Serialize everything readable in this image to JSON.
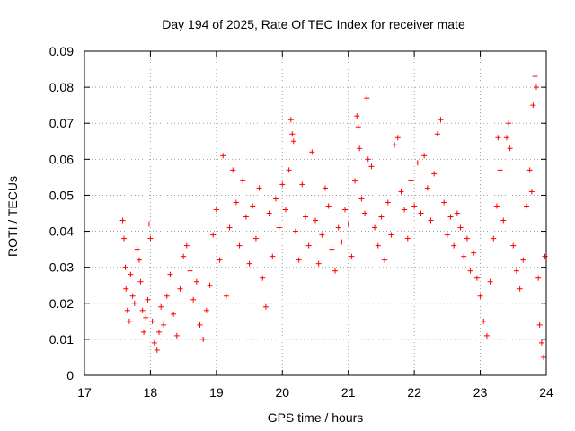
{
  "chart_data": {
    "type": "scatter",
    "title": "Day 194 of 2025, Rate Of TEC Index for receiver mate",
    "xlabel": "GPS time / hours",
    "ylabel": "ROTI / TECUs",
    "xlim": [
      17,
      24
    ],
    "ylim": [
      0,
      0.09
    ],
    "xticks": [
      "17",
      "18",
      "19",
      "20",
      "21",
      "22",
      "23",
      "24"
    ],
    "yticks": [
      "0",
      "0.01",
      "0.02",
      "0.03",
      "0.04",
      "0.05",
      "0.06",
      "0.07",
      "0.08",
      "0.09"
    ],
    "grid": true,
    "marker": "+",
    "color": "#ff0000",
    "series": [
      {
        "name": "ROTI",
        "points": [
          [
            17.58,
            0.043
          ],
          [
            17.6,
            0.038
          ],
          [
            17.62,
            0.03
          ],
          [
            17.63,
            0.024
          ],
          [
            17.65,
            0.018
          ],
          [
            17.68,
            0.015
          ],
          [
            17.7,
            0.028
          ],
          [
            17.73,
            0.022
          ],
          [
            17.76,
            0.02
          ],
          [
            17.8,
            0.035
          ],
          [
            17.83,
            0.032
          ],
          [
            17.85,
            0.026
          ],
          [
            17.88,
            0.018
          ],
          [
            17.9,
            0.012
          ],
          [
            17.93,
            0.016
          ],
          [
            17.96,
            0.021
          ],
          [
            17.98,
            0.042
          ],
          [
            18.0,
            0.038
          ],
          [
            18.03,
            0.015
          ],
          [
            18.06,
            0.009
          ],
          [
            18.1,
            0.007
          ],
          [
            18.13,
            0.012
          ],
          [
            18.16,
            0.019
          ],
          [
            18.2,
            0.014
          ],
          [
            18.25,
            0.022
          ],
          [
            18.3,
            0.028
          ],
          [
            18.35,
            0.017
          ],
          [
            18.4,
            0.011
          ],
          [
            18.45,
            0.024
          ],
          [
            18.5,
            0.033
          ],
          [
            18.55,
            0.036
          ],
          [
            18.6,
            0.029
          ],
          [
            18.65,
            0.021
          ],
          [
            18.7,
            0.026
          ],
          [
            18.75,
            0.014
          ],
          [
            18.8,
            0.01
          ],
          [
            18.85,
            0.018
          ],
          [
            18.9,
            0.025
          ],
          [
            18.95,
            0.039
          ],
          [
            19.0,
            0.046
          ],
          [
            19.05,
            0.032
          ],
          [
            19.1,
            0.061
          ],
          [
            19.15,
            0.022
          ],
          [
            19.2,
            0.041
          ],
          [
            19.25,
            0.057
          ],
          [
            19.3,
            0.048
          ],
          [
            19.35,
            0.036
          ],
          [
            19.4,
            0.054
          ],
          [
            19.45,
            0.044
          ],
          [
            19.5,
            0.031
          ],
          [
            19.55,
            0.047
          ],
          [
            19.6,
            0.038
          ],
          [
            19.65,
            0.052
          ],
          [
            19.7,
            0.027
          ],
          [
            19.75,
            0.019
          ],
          [
            19.8,
            0.045
          ],
          [
            19.85,
            0.033
          ],
          [
            19.9,
            0.049
          ],
          [
            19.95,
            0.041
          ],
          [
            20.0,
            0.053
          ],
          [
            20.05,
            0.046
          ],
          [
            20.1,
            0.057
          ],
          [
            20.13,
            0.071
          ],
          [
            20.15,
            0.067
          ],
          [
            20.17,
            0.065
          ],
          [
            20.2,
            0.04
          ],
          [
            20.25,
            0.032
          ],
          [
            20.3,
            0.053
          ],
          [
            20.35,
            0.044
          ],
          [
            20.4,
            0.036
          ],
          [
            20.45,
            0.062
          ],
          [
            20.5,
            0.043
          ],
          [
            20.55,
            0.031
          ],
          [
            20.6,
            0.039
          ],
          [
            20.65,
            0.052
          ],
          [
            20.7,
            0.047
          ],
          [
            20.75,
            0.035
          ],
          [
            20.8,
            0.029
          ],
          [
            20.85,
            0.041
          ],
          [
            20.9,
            0.037
          ],
          [
            20.95,
            0.046
          ],
          [
            21.0,
            0.042
          ],
          [
            21.05,
            0.033
          ],
          [
            21.1,
            0.054
          ],
          [
            21.13,
            0.072
          ],
          [
            21.15,
            0.069
          ],
          [
            21.17,
            0.063
          ],
          [
            21.2,
            0.049
          ],
          [
            21.25,
            0.045
          ],
          [
            21.28,
            0.077
          ],
          [
            21.3,
            0.06
          ],
          [
            21.35,
            0.058
          ],
          [
            21.4,
            0.041
          ],
          [
            21.45,
            0.036
          ],
          [
            21.5,
            0.044
          ],
          [
            21.55,
            0.032
          ],
          [
            21.6,
            0.048
          ],
          [
            21.65,
            0.039
          ],
          [
            21.7,
            0.064
          ],
          [
            21.75,
            0.066
          ],
          [
            21.8,
            0.051
          ],
          [
            21.85,
            0.046
          ],
          [
            21.9,
            0.038
          ],
          [
            21.95,
            0.054
          ],
          [
            22.0,
            0.047
          ],
          [
            22.05,
            0.059
          ],
          [
            22.1,
            0.045
          ],
          [
            22.15,
            0.061
          ],
          [
            22.2,
            0.052
          ],
          [
            22.25,
            0.043
          ],
          [
            22.3,
            0.056
          ],
          [
            22.35,
            0.067
          ],
          [
            22.4,
            0.071
          ],
          [
            22.45,
            0.048
          ],
          [
            22.5,
            0.039
          ],
          [
            22.55,
            0.044
          ],
          [
            22.6,
            0.036
          ],
          [
            22.65,
            0.045
          ],
          [
            22.7,
            0.041
          ],
          [
            22.75,
            0.033
          ],
          [
            22.8,
            0.038
          ],
          [
            22.85,
            0.029
          ],
          [
            22.9,
            0.034
          ],
          [
            22.95,
            0.027
          ],
          [
            23.0,
            0.022
          ],
          [
            23.05,
            0.015
          ],
          [
            23.1,
            0.011
          ],
          [
            23.15,
            0.026
          ],
          [
            23.2,
            0.038
          ],
          [
            23.25,
            0.047
          ],
          [
            23.27,
            0.066
          ],
          [
            23.3,
            0.057
          ],
          [
            23.35,
            0.043
          ],
          [
            23.4,
            0.066
          ],
          [
            23.43,
            0.07
          ],
          [
            23.45,
            0.063
          ],
          [
            23.5,
            0.036
          ],
          [
            23.55,
            0.029
          ],
          [
            23.6,
            0.024
          ],
          [
            23.65,
            0.032
          ],
          [
            23.7,
            0.047
          ],
          [
            23.75,
            0.057
          ],
          [
            23.78,
            0.051
          ],
          [
            23.8,
            0.075
          ],
          [
            23.83,
            0.083
          ],
          [
            23.85,
            0.08
          ],
          [
            23.88,
            0.027
          ],
          [
            23.9,
            0.014
          ],
          [
            23.93,
            0.009
          ],
          [
            23.96,
            0.005
          ],
          [
            23.98,
            0.033
          ]
        ]
      }
    ]
  }
}
